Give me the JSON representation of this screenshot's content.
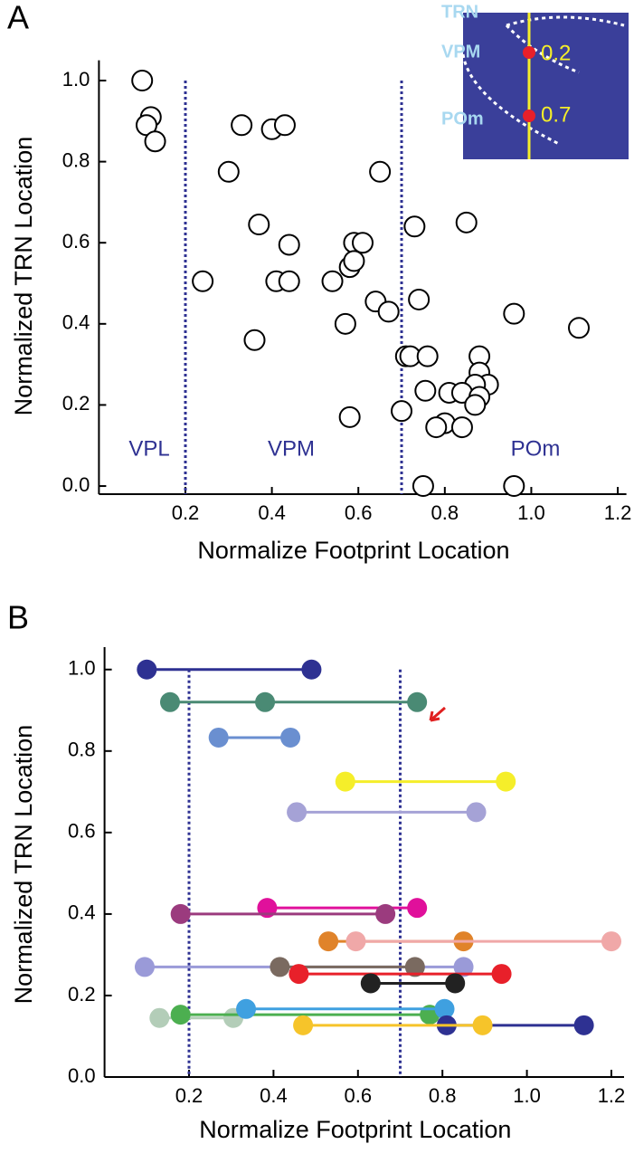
{
  "chart_data": [
    {
      "panel": "A",
      "type": "scatter",
      "color": "#000000",
      "xlabel": "Normalize Footprint Location",
      "ylabel": "Normalized TRN Location",
      "xlim": [
        0,
        1.22
      ],
      "ylim": [
        -0.02,
        1.05
      ],
      "xticks": [
        0.2,
        0.4,
        0.6,
        0.8,
        {
          "value": 1,
          "label": "1.0"
        },
        1.2
      ],
      "yticks": [
        {
          "value": 0,
          "label": "0.0"
        },
        0.2,
        0.4,
        0.6,
        0.8,
        {
          "value": 1,
          "label": "1.0"
        }
      ],
      "dividers": [
        0.2,
        0.7
      ],
      "divider_color": "#2e3192",
      "regions": [
        "VPL",
        "VPM",
        "POm"
      ],
      "inset_labels": [
        "TRN",
        "VPM",
        "POm",
        "0.2",
        "0.7"
      ],
      "x": [
        0.1,
        0.12,
        0.11,
        0.13,
        0.33,
        0.4,
        0.43,
        0.3,
        0.65,
        0.37,
        0.73,
        0.85,
        0.44,
        0.59,
        0.61,
        0.58,
        0.59,
        0.24,
        0.41,
        0.44,
        0.54,
        0.64,
        0.67,
        0.74,
        0.57,
        0.36,
        0.96,
        1.11,
        0.71,
        0.72,
        0.76,
        0.88,
        0.755,
        0.81,
        0.88,
        0.9,
        0.87,
        0.84,
        0.88,
        0.87,
        0.7,
        0.58,
        0.8,
        0.78,
        0.84,
        0.75,
        0.96
      ],
      "values": [
        1.0,
        0.91,
        0.89,
        0.85,
        0.89,
        0.88,
        0.89,
        0.775,
        0.775,
        0.645,
        0.64,
        0.65,
        0.595,
        0.6,
        0.6,
        0.54,
        0.555,
        0.505,
        0.505,
        0.505,
        0.505,
        0.455,
        0.43,
        0.46,
        0.4,
        0.36,
        0.425,
        0.39,
        0.32,
        0.32,
        0.32,
        0.32,
        0.235,
        0.23,
        0.28,
        0.25,
        0.25,
        0.23,
        0.22,
        0.2,
        0.185,
        0.17,
        0.155,
        0.145,
        0.145,
        0.0,
        0.0
      ]
    },
    {
      "panel": "B",
      "type": "line",
      "xlabel": "Normalize Footprint Location",
      "ylabel": "Normalized TRN Location",
      "xlim": [
        0,
        1.23
      ],
      "ylim": [
        0,
        1.055
      ],
      "xticks": [
        0.2,
        0.4,
        0.6,
        0.8,
        {
          "value": 1,
          "label": "1.0"
        },
        1.2
      ],
      "yticks": [
        {
          "value": 0,
          "label": "0.0"
        },
        0.2,
        0.4,
        0.6,
        0.8,
        {
          "value": 1,
          "label": "1.0"
        }
      ],
      "dividers": [
        0.2,
        0.7
      ],
      "divider_color": "#2e3192",
      "series": [
        {
          "color": "#2e3192",
          "x": [
            0.1,
            0.49
          ],
          "values": [
            1.0,
            1.0
          ]
        },
        {
          "color": "#4a8a74",
          "x": [
            0.155,
            0.38,
            0.74
          ],
          "values": [
            0.92,
            0.92,
            0.92
          ]
        },
        {
          "color": "#6a8fd0",
          "x": [
            0.27,
            0.44
          ],
          "values": [
            0.833,
            0.833
          ]
        },
        {
          "color": "#f5ee2a",
          "x": [
            0.57,
            0.95
          ],
          "values": [
            0.725,
            0.725
          ]
        },
        {
          "color": "#a5a2d6",
          "x": [
            0.455,
            0.88
          ],
          "values": [
            0.65,
            0.65
          ]
        },
        {
          "color": "#e0109b",
          "x": [
            0.385,
            0.74
          ],
          "values": [
            0.415,
            0.415
          ]
        },
        {
          "color": "#9b3b7e",
          "x": [
            0.18,
            0.665
          ],
          "values": [
            0.4,
            0.4
          ]
        },
        {
          "color": "#e0832a",
          "x": [
            0.53,
            0.85
          ],
          "values": [
            0.333,
            0.333
          ]
        },
        {
          "color": "#f0a8a8",
          "x": [
            0.595,
            1.2
          ],
          "values": [
            0.333,
            0.333
          ]
        },
        {
          "color": "#9a9ad8",
          "x": [
            0.095,
            0.85
          ],
          "values": [
            0.27,
            0.27
          ]
        },
        {
          "color": "#7a6a60",
          "x": [
            0.415,
            0.735
          ],
          "values": [
            0.27,
            0.27
          ]
        },
        {
          "color": "#e8202a",
          "x": [
            0.46,
            0.94
          ],
          "values": [
            0.253,
            0.253
          ]
        },
        {
          "color": "#222222",
          "x": [
            0.63,
            0.83
          ],
          "values": [
            0.23,
            0.23
          ]
        },
        {
          "color": "#b3cdb8",
          "x": [
            0.13,
            0.305
          ],
          "values": [
            0.145,
            0.145
          ]
        },
        {
          "color": "#4caf50",
          "x": [
            0.18,
            0.77
          ],
          "values": [
            0.153,
            0.153
          ]
        },
        {
          "color": "#3fa0e0",
          "x": [
            0.335,
            0.805
          ],
          "values": [
            0.167,
            0.167
          ]
        },
        {
          "color": "#2e3192",
          "x": [
            0.81,
            1.135
          ],
          "values": [
            0.127,
            0.127
          ]
        },
        {
          "color": "#f6c42a",
          "x": [
            0.47,
            0.895
          ],
          "values": [
            0.127,
            0.127
          ]
        }
      ]
    }
  ]
}
